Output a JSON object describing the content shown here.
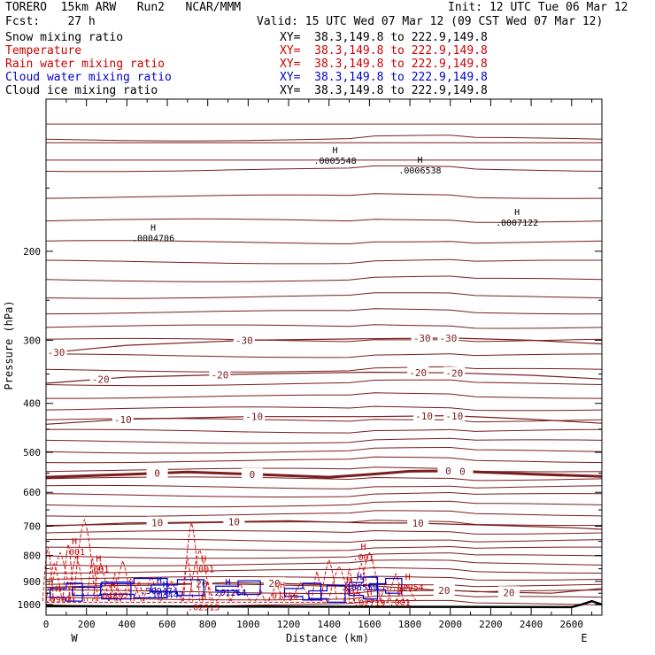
{
  "header": {
    "line1_left": "TORERO  15km ARW   Run2   NCAR/MMM",
    "line1_right": "Init: 12 UTC Tue 06 Mar 12",
    "line2_left": "Fcst:    27 h",
    "line2_right": "Valid: 15 UTC Wed 07 Mar 12 (09 CST Wed 07 Mar 12)"
  },
  "legend": [
    {
      "label": "Snow mixing ratio",
      "xy": "XY=  38.3,149.8 to 222.9,149.8",
      "color": "#000000"
    },
    {
      "label": "Temperature",
      "xy": "XY=  38.3,149.8 to 222.9,149.8",
      "color": "#cc0000"
    },
    {
      "label": "Rain water mixing ratio",
      "xy": "XY=  38.3,149.8 to 222.9,149.8",
      "color": "#cc0000"
    },
    {
      "label": "Cloud water mixing ratio",
      "xy": "XY=  38.3,149.8 to 222.9,149.8",
      "color": "#0000cc"
    },
    {
      "label": "Cloud ice mixing ratio",
      "xy": "XY=  38.3,149.8 to 222.9,149.8",
      "color": "#000000"
    }
  ],
  "chart_data": {
    "type": "line",
    "xlabel": "Distance (km)",
    "ylabel": "Pressure (hPa)",
    "xlim": [
      0,
      2750
    ],
    "ylim": [
      1050,
      100
    ],
    "y_scale": "log",
    "x_ticks": [
      0,
      200,
      400,
      600,
      800,
      1000,
      1200,
      1400,
      1600,
      1800,
      2000,
      2200,
      2400,
      2600
    ],
    "y_ticks": [
      200,
      300,
      400,
      500,
      600,
      700,
      800,
      900,
      1000
    ],
    "x_end_labels": {
      "left": "W",
      "right": "E"
    },
    "temperature_contours": [
      {
        "value": -30,
        "points": [
          [
            0,
            318
          ],
          [
            400,
            307
          ],
          [
            1000,
            300
          ],
          [
            1600,
            298
          ],
          [
            2000,
            297
          ],
          [
            2400,
            300
          ],
          [
            2750,
            305
          ]
        ],
        "labels": [
          [
            50,
            "-30"
          ],
          [
            980,
            "-30"
          ],
          [
            1860,
            "-30"
          ],
          [
            1990,
            "-30"
          ]
        ]
      },
      {
        "value": -20,
        "points": [
          [
            0,
            365
          ],
          [
            400,
            355
          ],
          [
            1000,
            350
          ],
          [
            1600,
            347
          ],
          [
            2000,
            348
          ],
          [
            2400,
            352
          ],
          [
            2750,
            358
          ]
        ],
        "labels": [
          [
            270,
            "-20"
          ],
          [
            860,
            "-20"
          ],
          [
            1840,
            "-20"
          ],
          [
            2020,
            "-20"
          ]
        ]
      },
      {
        "value": -10,
        "points": [
          [
            0,
            440
          ],
          [
            400,
            430
          ],
          [
            1000,
            425
          ],
          [
            1600,
            425
          ],
          [
            2000,
            423
          ],
          [
            2400,
            430
          ],
          [
            2750,
            438
          ]
        ],
        "labels": [
          [
            380,
            "-10"
          ],
          [
            1030,
            "-10"
          ],
          [
            1870,
            "-10"
          ],
          [
            2020,
            "-10"
          ]
        ]
      },
      {
        "value": 0,
        "points": [
          [
            0,
            560
          ],
          [
            400,
            553
          ],
          [
            700,
            547
          ],
          [
            1000,
            552
          ],
          [
            1400,
            560
          ],
          [
            1600,
            553
          ],
          [
            1800,
            545
          ],
          [
            2000,
            544
          ],
          [
            2400,
            552
          ],
          [
            2750,
            558
          ]
        ],
        "labels": [
          [
            550,
            "0"
          ],
          [
            1020,
            "0"
          ],
          [
            1990,
            "0"
          ],
          [
            2060,
            "0"
          ]
        ]
      },
      {
        "value": 10,
        "points": [
          [
            0,
            700
          ],
          [
            400,
            690
          ],
          [
            800,
            687
          ],
          [
            1200,
            683
          ],
          [
            1600,
            690
          ],
          [
            1800,
            690
          ],
          [
            2200,
            697
          ],
          [
            2600,
            705
          ],
          [
            2750,
            710
          ]
        ],
        "labels": [
          [
            550,
            "10"
          ],
          [
            930,
            "10"
          ],
          [
            1840,
            "10"
          ]
        ]
      },
      {
        "value": 20,
        "points": [
          [
            0,
            925
          ],
          [
            300,
            918
          ],
          [
            600,
            915
          ],
          [
            900,
            905
          ],
          [
            1200,
            910
          ],
          [
            1600,
            918
          ],
          [
            1900,
            935
          ],
          [
            2200,
            945
          ],
          [
            2500,
            950
          ],
          [
            2750,
            930
          ]
        ],
        "labels": [
          [
            770,
            "20"
          ],
          [
            1130,
            "20"
          ],
          [
            1970,
            "20"
          ],
          [
            2290,
            "20"
          ]
        ]
      }
    ],
    "max_labels": [
      {
        "text": ".0004706",
        "x": 530,
        "p": 188
      },
      {
        "text": ".0007122",
        "x": 2330,
        "p": 175
      },
      {
        "text": ".0005548",
        "x": 1430,
        "p": 132
      },
      {
        "text": ".0006538",
        "x": 1850,
        "p": 138
      },
      {
        "text": ".001",
        "x": 140,
        "p": 785
      },
      {
        "text": ".001",
        "x": 260,
        "p": 850
      },
      {
        "text": ".001",
        "x": 780,
        "p": 850
      },
      {
        "text": ".001",
        "x": 1570,
        "p": 805
      },
      {
        "text": ".001",
        "x": 1500,
        "p": 938
      },
      {
        "text": ".001",
        "x": 1750,
        "p": 988
      },
      {
        "text": ".04892",
        "x": 330,
        "p": 958
      },
      {
        "text": ".103447",
        "x": 590,
        "p": 955
      },
      {
        "text": ".309474",
        "x": 560,
        "p": 938
      },
      {
        "text": ".201264",
        "x": 900,
        "p": 945
      },
      {
        "text": ".01756",
        "x": 1170,
        "p": 958
      },
      {
        "text": ".106559",
        "x": 1550,
        "p": 923
      },
      {
        "text": ".02954",
        "x": 1790,
        "p": 923
      },
      {
        "text": ".02719",
        "x": 1600,
        "p": 990
      },
      {
        "text": ".02313",
        "x": 780,
        "p": 1010
      },
      {
        "text": ".0997",
        "x": 60,
        "p": 975
      }
    ]
  }
}
